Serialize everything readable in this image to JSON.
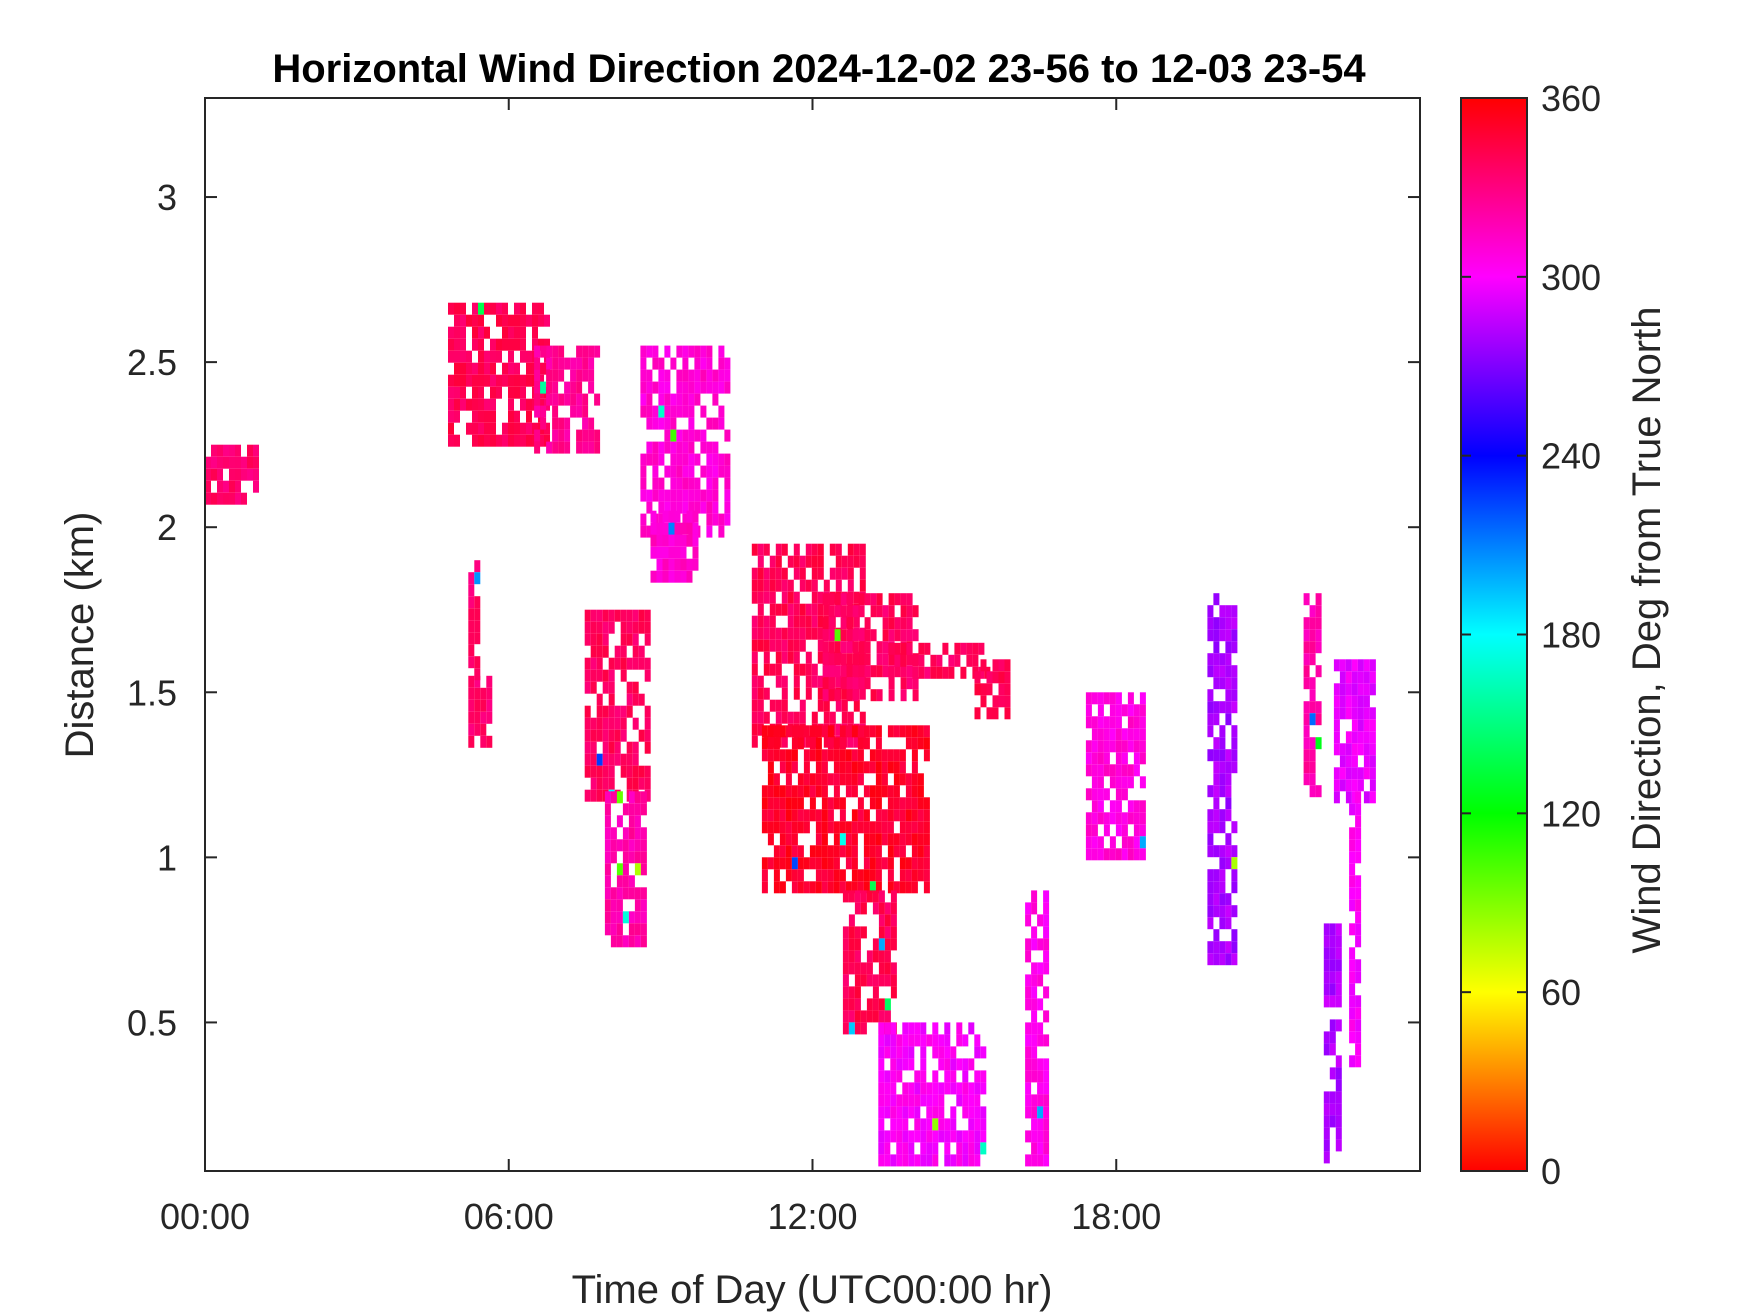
{
  "chart_data": {
    "type": "heatmap",
    "title": "Horizontal Wind Direction 2024-12-02 23-56 to 12-03 23-54",
    "xlabel": "Time of Day (UTC00:00 hr)",
    "ylabel": "Distance (km)",
    "xlim": [
      0,
      24
    ],
    "ylim": [
      0.05,
      3.3
    ],
    "x_ticks": [
      {
        "value": 0,
        "label": "00:00"
      },
      {
        "value": 6,
        "label": "06:00"
      },
      {
        "value": 12,
        "label": "12:00"
      },
      {
        "value": 18,
        "label": "18:00"
      }
    ],
    "y_ticks": [
      {
        "value": 0.5,
        "label": "0.5"
      },
      {
        "value": 1,
        "label": "1"
      },
      {
        "value": 1.5,
        "label": "1.5"
      },
      {
        "value": 2,
        "label": "2"
      },
      {
        "value": 2.5,
        "label": "2.5"
      },
      {
        "value": 3,
        "label": "3"
      }
    ],
    "colorbar": {
      "label": "Wind Direction, Deg from True North",
      "range": [
        0,
        360
      ],
      "ticks": [
        "0",
        "60",
        "120",
        "180",
        "240",
        "300",
        "360"
      ],
      "colormap": "hsv"
    },
    "grid": false,
    "regions": [
      {
        "x": [
          0.0,
          1.0
        ],
        "y": [
          2.07,
          2.25
        ],
        "deg": 335
      },
      {
        "x": [
          4.8,
          6.7
        ],
        "y": [
          2.25,
          2.68
        ],
        "deg": 340
      },
      {
        "x": [
          6.5,
          7.7
        ],
        "y": [
          2.25,
          2.55
        ],
        "deg": 325
      },
      {
        "x": [
          8.6,
          10.3
        ],
        "y": [
          2.0,
          2.55
        ],
        "deg": 310
      },
      {
        "x": [
          8.8,
          9.7
        ],
        "y": [
          1.85,
          2.05
        ],
        "deg": 312
      },
      {
        "x": [
          5.2,
          5.6
        ],
        "y": [
          1.35,
          1.55
        ],
        "deg": 335
      },
      {
        "x": [
          5.2,
          5.4
        ],
        "y": [
          1.55,
          1.9
        ],
        "deg": 335
      },
      {
        "x": [
          7.5,
          8.8
        ],
        "y": [
          1.2,
          1.75
        ],
        "deg": 338
      },
      {
        "x": [
          7.9,
          8.7
        ],
        "y": [
          0.75,
          1.2
        ],
        "deg": 320
      },
      {
        "x": [
          10.8,
          13.0
        ],
        "y": [
          1.35,
          1.95
        ],
        "deg": 340
      },
      {
        "x": [
          11.0,
          14.3
        ],
        "y": [
          0.9,
          1.4
        ],
        "deg": 350
      },
      {
        "x": [
          12.2,
          14.0
        ],
        "y": [
          1.5,
          1.8
        ],
        "deg": 338
      },
      {
        "x": [
          13.5,
          15.4
        ],
        "y": [
          1.55,
          1.65
        ],
        "deg": 338
      },
      {
        "x": [
          15.2,
          15.8
        ],
        "y": [
          1.45,
          1.6
        ],
        "deg": 340
      },
      {
        "x": [
          12.6,
          13.6
        ],
        "y": [
          0.5,
          0.9
        ],
        "deg": 340
      },
      {
        "x": [
          13.3,
          15.4
        ],
        "y": [
          0.1,
          0.5
        ],
        "deg": 300
      },
      {
        "x": [
          16.2,
          16.6
        ],
        "y": [
          0.1,
          0.9
        ],
        "deg": 305
      },
      {
        "x": [
          17.4,
          18.5
        ],
        "y": [
          1.0,
          1.5
        ],
        "deg": 308
      },
      {
        "x": [
          19.8,
          20.3
        ],
        "y": [
          0.7,
          1.8
        ],
        "deg": 280
      },
      {
        "x": [
          21.7,
          22.0
        ],
        "y": [
          1.2,
          1.8
        ],
        "deg": 320
      },
      {
        "x": [
          22.1,
          22.4
        ],
        "y": [
          0.1,
          0.8
        ],
        "deg": 282
      },
      {
        "x": [
          22.3,
          23.1
        ],
        "y": [
          1.2,
          1.6
        ],
        "deg": 296
      },
      {
        "x": [
          22.6,
          22.8
        ],
        "y": [
          0.4,
          1.2
        ],
        "deg": 300
      }
    ]
  }
}
